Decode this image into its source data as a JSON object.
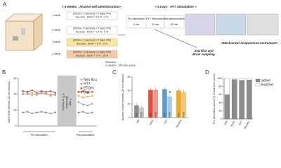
{
  "panel_a": {
    "label": "A",
    "left_title": "< 4 Weeks : Alcohol self-administration>",
    "weeks": [
      {
        "label": "1 week",
        "schedule": "(20min x 3 session) x 5 days, FR1",
        "solution": "Sucrose : EtOH = 10 % : 2 %"
      },
      {
        "label": "2 week",
        "schedule": "(20min x 3 session) x 5 days, FR1",
        "solution": "Sucrose : EtOH = 10 % : 5 %"
      },
      {
        "label": "3 week",
        "schedule": "(20min x 3 session) x 5 days, FR1",
        "solution": "Sucrose : EtOH = 5 % : 5 %"
      },
      {
        "label": "4 week",
        "schedule": "(20min x 3 session) x 5 days, FR1",
        "solution": "Sucrose : EtOH = 5 % : 10 %"
      }
    ],
    "selection": [
      "Selection :",
      "1 session / 100 lever press"
    ],
    "right_title": "< 5 Days : HT7 Stimulation >",
    "steps": [
      {
        "label": "Pre-stimulation",
        "time": "3 min"
      },
      {
        "label": "HT7 Stimulation",
        "time": "10 min"
      },
      {
        "label": "Self-administration",
        "time": "20 min"
      }
    ],
    "outcome": [
      "Sacrifice and",
      "Brain sampling"
    ],
    "instrument": "<Mechanical Acupuncture Instrument>"
  },
  "chart_data": [
    {
      "label": "B",
      "type": "line",
      "y_label": "Active lever presses (20 min session)",
      "x": [
        1,
        2,
        3,
        4,
        5,
        6,
        7,
        8,
        13,
        14,
        15,
        16
      ],
      "xlim": [
        0,
        17
      ],
      "ylim": [
        0,
        60
      ],
      "yticks": [
        0,
        20,
        40,
        60
      ],
      "series": [
        {
          "name": "Non Acu",
          "color": "#f5b041",
          "values": [
            41,
            40,
            42,
            39,
            41,
            40,
            38,
            40,
            38,
            36,
            37,
            38
          ]
        },
        {
          "name": "HT7",
          "color": "#7fb3e0",
          "values": [
            40,
            41,
            39,
            40,
            42,
            41,
            40,
            39,
            30,
            27,
            26,
            28
          ]
        },
        {
          "name": "ETOH",
          "color": "#e74c3c",
          "values": [
            44,
            43,
            45,
            42,
            44,
            43,
            44,
            42,
            43,
            44,
            42,
            43
          ]
        },
        {
          "name": "DW",
          "color": "#999999",
          "values": [
            17,
            18,
            16,
            17,
            18,
            17,
            16,
            17,
            17,
            18,
            16,
            17
          ]
        }
      ],
      "stimulation_label": [
        "HT7 or NonAcu",
        "Stimulation",
        "5 days"
      ],
      "pre_label": "Pre-stimulation",
      "post_label": "Post-stimulation"
    },
    {
      "label": "C",
      "type": "bar",
      "y_label": "Number of lever presses (20 min session)",
      "categories": [
        "DW",
        "EtOH",
        "HT7",
        "NonAcu"
      ],
      "ylim": [
        0,
        60
      ],
      "yticks": [
        0,
        20,
        40,
        60
      ],
      "series": [
        {
          "name": "Pre",
          "colors": [
            "#8c8c8c",
            "#e74c3c",
            "#5b9bd5",
            "#f5a623"
          ],
          "values": [
            18,
            41,
            42,
            40
          ]
        },
        {
          "name": "Post",
          "colors": [
            "#c8c8c8",
            "#f1948a",
            "#a9cce3",
            "#f8c471"
          ],
          "values": [
            15,
            41,
            31,
            38
          ]
        }
      ],
      "annotations": [
        {
          "text": "#",
          "category": "HT7",
          "series": "Post"
        }
      ]
    },
    {
      "label": "D",
      "type": "stacked_bar",
      "y_label": "Pre stimulation period (% of total lever press)",
      "categories": [
        "DW",
        "EtOH",
        "HT7",
        "NonAcu"
      ],
      "ylim": [
        0,
        100
      ],
      "yticks": [
        0,
        20,
        40,
        60,
        80,
        100
      ],
      "legend": "upper right",
      "series": [
        {
          "name": "active",
          "color": "#8c8c8c",
          "values": [
            60,
            97,
            95,
            96
          ]
        },
        {
          "name": "inactive",
          "color": "#ffffff",
          "values": [
            40,
            3,
            5,
            4
          ]
        }
      ]
    }
  ]
}
